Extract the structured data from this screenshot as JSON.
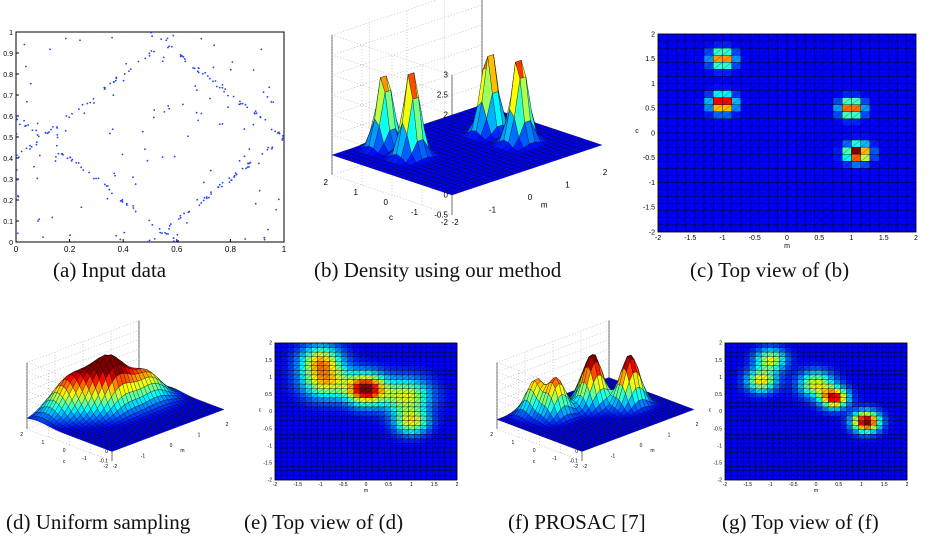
{
  "figure": {
    "captions": {
      "a": "(a) Input data",
      "b": "(b) Density using our method",
      "c": "(c) Top view of (b)",
      "d": "(d) Uniform sampling",
      "e": "(e) Top view of (d)",
      "f": "(f) PROSAC [7]",
      "g": "(g) Top view of (f)"
    }
  },
  "chart_data": [
    {
      "id": "a",
      "type": "scatter",
      "title": "",
      "xlim": [
        0,
        1
      ],
      "ylim": [
        0,
        1
      ],
      "x_ticks": [
        "0",
        "0.2",
        "0.4",
        "0.6",
        "0.8",
        "1"
      ],
      "y_ticks": [
        "0",
        "0.1",
        "0.2",
        "0.3",
        "0.4",
        "0.5",
        "0.6",
        "0.7",
        "0.8",
        "0.9",
        "1"
      ],
      "lines": [
        {
          "m": 1,
          "c": 0.4
        },
        {
          "m": -1,
          "c": 0.6
        },
        {
          "m": 1,
          "c": -0.5
        },
        {
          "m": -1,
          "c": 1.5
        }
      ],
      "marker_color": "#1f3fff"
    },
    {
      "id": "b",
      "type": "surface",
      "xlabel": "m",
      "ylabel": "c",
      "z_ticks": [
        "-0.5",
        "0",
        "0.5",
        "1",
        "1.5",
        "2",
        "2.5",
        "3"
      ],
      "x_ticks": [
        "-2",
        "-1",
        "0",
        "1",
        "2"
      ],
      "y_ticks": [
        "-2",
        "-1",
        "0",
        "1",
        "2"
      ],
      "peaks": [
        {
          "m": -1,
          "c": 1.5,
          "h": 2.0
        },
        {
          "m": -1,
          "c": 0.6,
          "h": 2.3
        },
        {
          "m": 1,
          "c": 0.5,
          "h": 2.2
        },
        {
          "m": 1,
          "c": -0.5,
          "h": 2.3
        }
      ]
    },
    {
      "id": "c",
      "type": "heatmap",
      "xlabel": "m",
      "ylabel": "c",
      "x_ticks": [
        "-2",
        "-1.5",
        "-1",
        "-0.5",
        "0",
        "0.5",
        "1",
        "1.5",
        "2"
      ],
      "y_ticks": [
        "-2",
        "-1.5",
        "-1",
        "-0.5",
        "0",
        "0.5",
        "1",
        "1.5",
        "2"
      ],
      "xlim": [
        -2,
        2
      ],
      "ylim": [
        -2,
        2
      ],
      "blobs": [
        {
          "m": -1,
          "c": 1.5,
          "h": 0.75,
          "s": 0.12
        },
        {
          "m": -1,
          "c": 0.6,
          "h": 1.0,
          "s": 0.12
        },
        {
          "m": 1,
          "c": 0.5,
          "h": 0.8,
          "s": 0.12
        },
        {
          "m": 1.1,
          "c": -0.4,
          "h": 1.0,
          "s": 0.12
        }
      ]
    },
    {
      "id": "d",
      "type": "surface",
      "xlabel": "m",
      "ylabel": "c",
      "z_ticks": [
        "-0.1",
        "0",
        "0.1",
        "0.2",
        "0.3",
        "0.4",
        "0.5",
        "0.6"
      ],
      "x_ticks": [
        "-2",
        "-1",
        "0",
        "1",
        "2"
      ],
      "y_ticks": [
        "-2",
        "-1",
        "0",
        "1",
        "2"
      ],
      "peaks": [
        {
          "m": -1,
          "c": 1.5,
          "h": 0.3
        },
        {
          "m": 0,
          "c": 0.6,
          "h": 0.45
        },
        {
          "m": 1,
          "c": 0.4,
          "h": 0.3
        },
        {
          "m": -0.5,
          "c": 1.0,
          "h": 0.25
        }
      ]
    },
    {
      "id": "e",
      "type": "heatmap",
      "xlabel": "m",
      "ylabel": "c",
      "x_ticks": [
        "-2",
        "-1.5",
        "-1",
        "-0.5",
        "0",
        "0.5",
        "1",
        "1.5",
        "2"
      ],
      "y_ticks": [
        "-2",
        "-1.5",
        "-1",
        "-0.5",
        "0",
        "0.5",
        "1",
        "1.5",
        "2"
      ],
      "xlim": [
        -2,
        2
      ],
      "ylim": [
        -2,
        2
      ],
      "blobs": [
        {
          "m": -1,
          "c": 1.5,
          "h": 0.55,
          "s": 0.3
        },
        {
          "m": 0,
          "c": 0.65,
          "h": 1.0,
          "s": 0.3
        },
        {
          "m": -0.9,
          "c": 0.9,
          "h": 0.6,
          "s": 0.35
        },
        {
          "m": 0.9,
          "c": 0.45,
          "h": 0.55,
          "s": 0.35
        },
        {
          "m": 1.0,
          "c": -0.3,
          "h": 0.55,
          "s": 0.25
        }
      ]
    },
    {
      "id": "f",
      "type": "surface",
      "xlabel": "m",
      "ylabel": "c",
      "z_ticks": [
        "-0.1",
        "0",
        "0.1",
        "0.2",
        "0.3",
        "0.4",
        "0.5",
        "0.6"
      ],
      "x_ticks": [
        "-2",
        "-1",
        "0",
        "1",
        "2"
      ],
      "y_ticks": [
        "-2",
        "-1",
        "0",
        "1",
        "2"
      ],
      "peaks": [
        {
          "m": -1,
          "c": 1.5,
          "h": 0.35
        },
        {
          "m": 0.3,
          "c": 0.5,
          "h": 0.5
        },
        {
          "m": 1,
          "c": -0.3,
          "h": 0.55
        },
        {
          "m": -0.8,
          "c": 0.8,
          "h": 0.4
        },
        {
          "m": 0.5,
          "c": 1.0,
          "h": 0.3
        }
      ]
    },
    {
      "id": "g",
      "type": "heatmap",
      "xlabel": "m",
      "ylabel": "c",
      "x_ticks": [
        "-2",
        "-1.5",
        "-1",
        "-0.5",
        "0",
        "0.5",
        "1",
        "1.5",
        "2"
      ],
      "y_ticks": [
        "-2",
        "-1.5",
        "-1",
        "-0.5",
        "0",
        "0.5",
        "1",
        "1.5",
        "2"
      ],
      "xlim": [
        -2,
        2
      ],
      "ylim": [
        -2,
        2
      ],
      "blobs": [
        {
          "m": -1,
          "c": 1.5,
          "h": 0.55,
          "s": 0.22
        },
        {
          "m": -1.2,
          "c": 0.9,
          "h": 0.6,
          "s": 0.22
        },
        {
          "m": 0,
          "c": 0.8,
          "h": 0.55,
          "s": 0.25
        },
        {
          "m": 0.4,
          "c": 0.4,
          "h": 0.9,
          "s": 0.2
        },
        {
          "m": 1.1,
          "c": -0.3,
          "h": 1.0,
          "s": 0.2
        }
      ]
    }
  ]
}
